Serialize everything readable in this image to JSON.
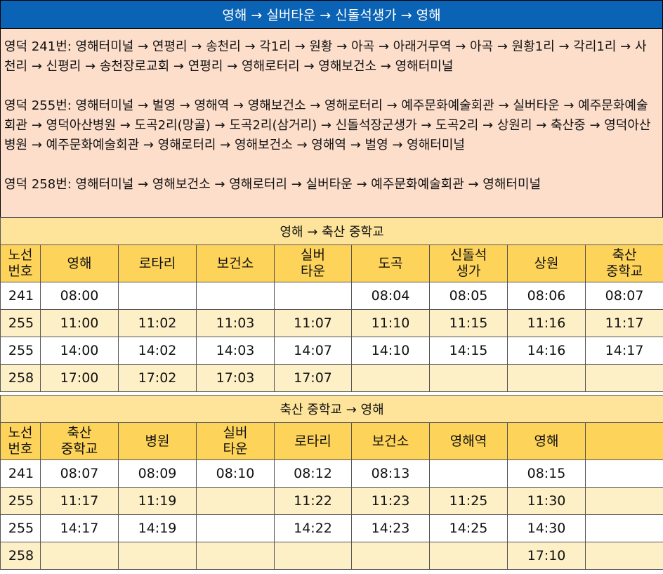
{
  "title": "영해 → 실버타운 → 신돌석생가 → 영해",
  "routes": [
    "영덕 241번: 영해터미널 → 연평리  → 송천리 → 각1리 → 원황 → 아곡 → 아래거무역 → 아곡 → 원황1리 → 각리1리 → 사천리 → 신평리 → 송천장로교회 → 연평리 → 영해로터리 → 영해보건소 → 영해터미널",
    "영덕 255번: 영해터미널 → 벌영 → 영해역 → 영해보건소 → 영해로터리 → 예주문화예술회관 → 실버타운 → 예주문화예술회관 → 영덕아산병원 → 도곡2리(망골) → 도곡2리(삼거리) → 신돌석장군생가 → 도곡2리 → 상원리 → 축산중 → 영덕아산병원 → 예주문화예술회관 → 영해로터리 → 영해보건소 → 영해역 → 벌영 → 영해터미널",
    "영덕 258번: 영해터미널 → 영해보건소 → 영해로터리 → 실버타운 → 예주문화예술회관 → 영해터미널"
  ],
  "table1": {
    "section_title": "영해 → 축산 중학교",
    "headers": [
      "노선\n번호",
      "영해",
      "로타리",
      "보건소",
      "실버\n타운",
      "도곡",
      "신돌석\n생가",
      "상원",
      "축산\n중학교"
    ],
    "rows": [
      [
        "241",
        "08:00",
        "",
        "",
        "",
        "08:04",
        "08:05",
        "08:06",
        "08:07"
      ],
      [
        "255",
        "11:00",
        "11:02",
        "11:03",
        "11:07",
        "11:10",
        "11:15",
        "11:16",
        "11:17"
      ],
      [
        "255",
        "14:00",
        "14:02",
        "14:03",
        "14:07",
        "14:10",
        "14:15",
        "14:16",
        "14:17"
      ],
      [
        "258",
        "17:00",
        "17:02",
        "17:03",
        "17:07",
        "",
        "",
        "",
        ""
      ]
    ]
  },
  "table2": {
    "section_title": "축산 중학교 → 영해",
    "headers": [
      "노선\n번호",
      "축산\n중학교",
      "병원",
      "실버\n타운",
      "로타리",
      "보건소",
      "영해역",
      "영해",
      ""
    ],
    "rows": [
      [
        "241",
        "08:07",
        "08:09",
        "08:10",
        "08:12",
        "08:13",
        "",
        "08:15",
        ""
      ],
      [
        "255",
        "11:17",
        "11:19",
        "",
        "11:22",
        "11:23",
        "11:25",
        "11:30",
        ""
      ],
      [
        "255",
        "14:17",
        "14:19",
        "",
        "14:22",
        "14:23",
        "14:25",
        "14:30",
        ""
      ],
      [
        "258",
        "",
        "",
        "",
        "",
        "",
        "",
        "17:10",
        ""
      ]
    ]
  }
}
